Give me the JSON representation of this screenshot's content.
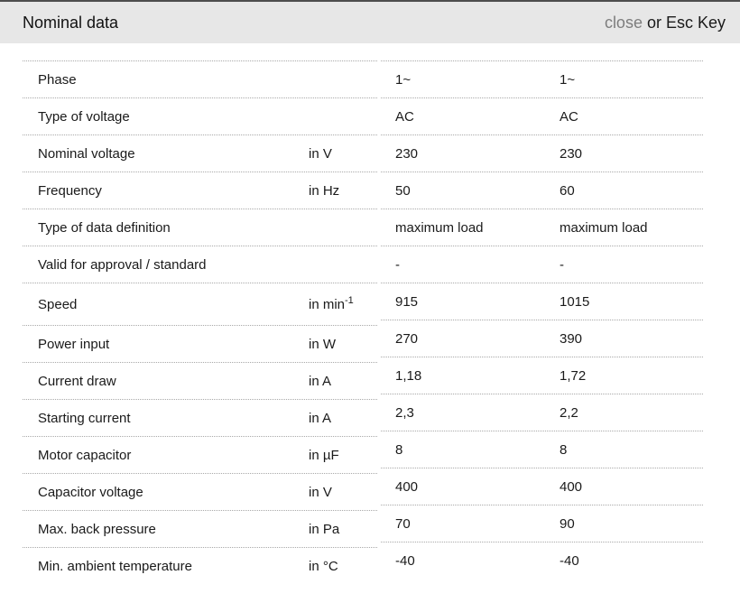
{
  "header": {
    "title": "Nominal data",
    "close_label": "close",
    "close_suffix": " or Esc Key"
  },
  "colors": {
    "header_background": "#e7e7e7",
    "top_border": "#4d4d4d",
    "close_link": "#7d7d7d",
    "row_divider": "#a9a9a9",
    "text": "#1a1a1a"
  },
  "table": {
    "rows": [
      {
        "label": "Phase",
        "unit": "",
        "unit_sup": "",
        "values": [
          "1~",
          "1~"
        ]
      },
      {
        "label": "Type of voltage",
        "unit": "",
        "unit_sup": "",
        "values": [
          "AC",
          "AC"
        ]
      },
      {
        "label": "Nominal voltage",
        "unit": "in V",
        "unit_sup": "",
        "values": [
          "230",
          "230"
        ]
      },
      {
        "label": "Frequency",
        "unit": "in Hz",
        "unit_sup": "",
        "values": [
          "50",
          "60"
        ]
      },
      {
        "label": "Type of data definition",
        "unit": "",
        "unit_sup": "",
        "values": [
          "maximum load",
          "maximum load"
        ]
      },
      {
        "label": "Valid for approval / standard",
        "unit": "",
        "unit_sup": "",
        "values": [
          "-",
          "-"
        ]
      },
      {
        "label": "Speed",
        "unit": "in min",
        "unit_sup": "-1",
        "values": [
          "915",
          "1015"
        ]
      },
      {
        "label": "Power input",
        "unit": "in W",
        "unit_sup": "",
        "values": [
          "270",
          "390"
        ]
      },
      {
        "label": "Current draw",
        "unit": "in A",
        "unit_sup": "",
        "values": [
          "1,18",
          "1,72"
        ]
      },
      {
        "label": "Starting current",
        "unit": "in A",
        "unit_sup": "",
        "values": [
          "2,3",
          "2,2"
        ]
      },
      {
        "label": "Motor capacitor",
        "unit": "in µF",
        "unit_sup": "",
        "values": [
          "8",
          "8"
        ]
      },
      {
        "label": "Capacitor voltage",
        "unit": "in V",
        "unit_sup": "",
        "values": [
          "400",
          "400"
        ]
      },
      {
        "label": "Max. back pressure",
        "unit": "in Pa",
        "unit_sup": "",
        "values": [
          "70",
          "90"
        ]
      },
      {
        "label": "Min. ambient temperature",
        "unit": "in °C",
        "unit_sup": "",
        "values": [
          "-40",
          "-40"
        ]
      }
    ]
  }
}
